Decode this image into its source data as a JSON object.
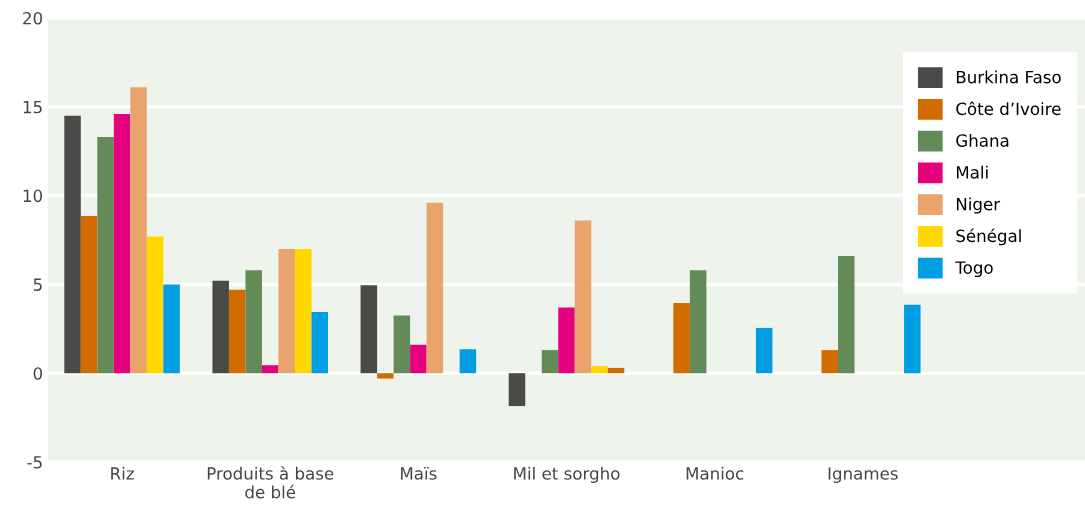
{
  "chart_data": {
    "type": "bar",
    "categories": [
      "Riz",
      "Produits à base\nde blé",
      "Maïs",
      "Mil et sorgho",
      "Manioc",
      "Ignames",
      null
    ],
    "series": [
      {
        "name": "Burkina Faso",
        "color": "#4a4a48",
        "values": [
          14.5,
          5.2,
          4.95,
          -1.85,
          null,
          null,
          null
        ]
      },
      {
        "name": "Côte d’Ivoire",
        "color": "#d26b00",
        "values": [
          8.85,
          4.7,
          -0.3,
          null,
          3.95,
          1.3,
          null
        ]
      },
      {
        "name": "Ghana",
        "color": "#628b57",
        "values": [
          13.3,
          5.8,
          3.25,
          1.3,
          5.8,
          6.6,
          null
        ]
      },
      {
        "name": "Mali",
        "color": "#e5007e",
        "values": [
          14.6,
          0.45,
          1.6,
          3.7,
          null,
          null,
          null
        ]
      },
      {
        "name": "Niger",
        "color": "#e8a46c",
        "values": [
          16.1,
          7.0,
          9.6,
          8.6,
          null,
          null,
          null
        ]
      },
      {
        "name": "Sénégal",
        "color": "#ffd800",
        "values": [
          7.7,
          7.0,
          null,
          0.4,
          null,
          null,
          null
        ]
      },
      {
        "name": "Togo",
        "color": "#009fe3",
        "colors": [
          "#009fe3",
          "#009fe3",
          "#009fe3",
          "#d26b00",
          "#009fe3",
          "#009fe3",
          "#009fe3"
        ],
        "values": [
          5.0,
          3.45,
          1.35,
          0.3,
          2.55,
          3.85,
          null
        ]
      }
    ],
    "ylim": [
      -5,
      20
    ],
    "yticks": [
      -5,
      0,
      5,
      10,
      15,
      20
    ],
    "grid": "y",
    "legend": "top right"
  }
}
